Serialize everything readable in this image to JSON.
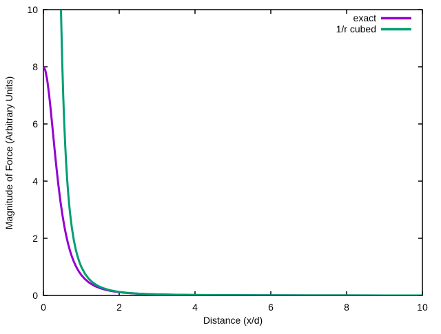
{
  "chart_data": {
    "type": "line",
    "title": "",
    "xlabel": "Distance (x/d)",
    "ylabel": "Magnitude of Force (Arbitrary Units)",
    "xlim": [
      0,
      10
    ],
    "ylim": [
      0,
      10
    ],
    "xticks": [
      "0",
      "2",
      "4",
      "6",
      "8",
      "10"
    ],
    "xtick_values": [
      0,
      2,
      4,
      6,
      8,
      10
    ],
    "yticks": [
      "0",
      "2",
      "4",
      "6",
      "8",
      "10"
    ],
    "ytick_values": [
      0,
      2,
      4,
      6,
      8,
      10
    ],
    "grid": false,
    "legend_position": "top-right-inside",
    "axis_color": "#000000",
    "background_color": "#ffffff",
    "series": [
      {
        "name": "exact",
        "color": "#9400d3",
        "x": [
          0,
          0.05,
          0.1,
          0.15,
          0.2,
          0.25,
          0.3,
          0.35,
          0.4,
          0.45,
          0.5,
          0.55,
          0.6,
          0.65,
          0.7,
          0.75,
          0.8,
          0.85,
          0.9,
          0.95,
          1.0,
          1.1,
          1.2,
          1.3,
          1.4,
          1.5,
          1.6,
          1.7,
          1.8,
          1.9,
          2.0,
          2.2,
          2.5,
          2.75,
          3.0,
          3.5,
          4.0,
          4.5,
          5.0,
          6.0,
          7.0,
          8.0,
          9.0,
          10.0
        ],
        "y": [
          8.0,
          7.881,
          7.543,
          7.03,
          6.403,
          5.724,
          5.044,
          4.399,
          3.809,
          3.285,
          2.828,
          2.435,
          2.099,
          1.813,
          1.571,
          1.365,
          1.191,
          1.043,
          0.916,
          0.808,
          0.716,
          0.567,
          0.455,
          0.37,
          0.304,
          0.253,
          0.212,
          0.18,
          0.153,
          0.132,
          0.114,
          0.087,
          0.06,
          0.046,
          0.036,
          0.023,
          0.015,
          0.011,
          0.008,
          0.005,
          0.003,
          0.002,
          0.0014,
          0.001
        ]
      },
      {
        "name": "1/r cubed",
        "color": "#009e73",
        "x": [
          0.464,
          0.475,
          0.5,
          0.525,
          0.55,
          0.575,
          0.6,
          0.625,
          0.65,
          0.675,
          0.7,
          0.75,
          0.8,
          0.85,
          0.9,
          0.95,
          1.0,
          1.1,
          1.2,
          1.3,
          1.4,
          1.5,
          1.6,
          1.7,
          1.8,
          1.9,
          2.0,
          2.2,
          2.5,
          2.75,
          3.0,
          3.5,
          4.0,
          4.5,
          5.0,
          6.0,
          7.0,
          8.0,
          9.0,
          10.0
        ],
        "y": [
          10.0,
          9.331,
          8.0,
          6.911,
          6.01,
          5.26,
          4.63,
          4.096,
          3.641,
          3.252,
          2.915,
          2.37,
          1.953,
          1.628,
          1.372,
          1.166,
          1.0,
          0.751,
          0.579,
          0.455,
          0.364,
          0.296,
          0.244,
          0.204,
          0.171,
          0.146,
          0.125,
          0.094,
          0.064,
          0.048,
          0.037,
          0.023,
          0.016,
          0.011,
          0.008,
          0.0046,
          0.0029,
          0.002,
          0.0014,
          0.001
        ]
      }
    ]
  }
}
